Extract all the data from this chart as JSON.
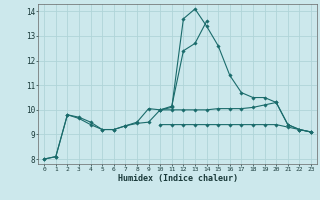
{
  "xlabel": "Humidex (Indice chaleur)",
  "background_color": "#cce8ec",
  "grid_color": "#b0d4d8",
  "line_color": "#1a6b6b",
  "xlim": [
    -0.5,
    23.5
  ],
  "ylim": [
    7.8,
    14.3
  ],
  "yticks": [
    8,
    9,
    10,
    11,
    12,
    13,
    14
  ],
  "xticks": [
    0,
    1,
    2,
    3,
    4,
    5,
    6,
    7,
    8,
    9,
    10,
    11,
    12,
    13,
    14,
    15,
    16,
    17,
    18,
    19,
    20,
    21,
    22,
    23
  ],
  "series": [
    {
      "x": [
        0,
        1,
        2,
        3,
        4,
        5,
        6,
        7,
        8,
        9,
        10,
        11,
        12,
        13,
        14,
        15,
        16,
        17,
        18,
        19,
        20,
        21,
        22,
        23
      ],
      "y": [
        8.0,
        8.1,
        9.8,
        9.7,
        9.5,
        9.2,
        9.2,
        9.35,
        9.45,
        9.5,
        10.0,
        10.1,
        13.7,
        14.1,
        13.4,
        12.6,
        11.4,
        10.7,
        10.5,
        10.5,
        10.3,
        9.4,
        9.2,
        9.1
      ]
    },
    {
      "x": [
        0,
        1,
        2,
        3,
        4,
        5,
        6,
        7,
        8,
        9,
        10,
        11,
        12,
        13,
        14
      ],
      "y": [
        8.0,
        8.1,
        9.8,
        9.65,
        9.4,
        9.2,
        9.2,
        9.35,
        9.5,
        10.05,
        10.0,
        10.15,
        12.4,
        12.7,
        13.6
      ]
    },
    {
      "x": [
        10,
        11,
        12,
        13,
        14,
        15,
        16,
        17,
        18,
        19,
        20,
        21,
        22,
        23
      ],
      "y": [
        10.0,
        10.0,
        10.0,
        10.0,
        10.0,
        10.05,
        10.05,
        10.05,
        10.1,
        10.2,
        10.3,
        9.4,
        9.2,
        9.1
      ]
    },
    {
      "x": [
        10,
        11,
        12,
        13,
        14,
        15,
        16,
        17,
        18,
        19,
        20,
        21,
        22,
        23
      ],
      "y": [
        9.4,
        9.4,
        9.4,
        9.4,
        9.4,
        9.4,
        9.4,
        9.4,
        9.4,
        9.4,
        9.4,
        9.3,
        9.2,
        9.1
      ]
    }
  ]
}
